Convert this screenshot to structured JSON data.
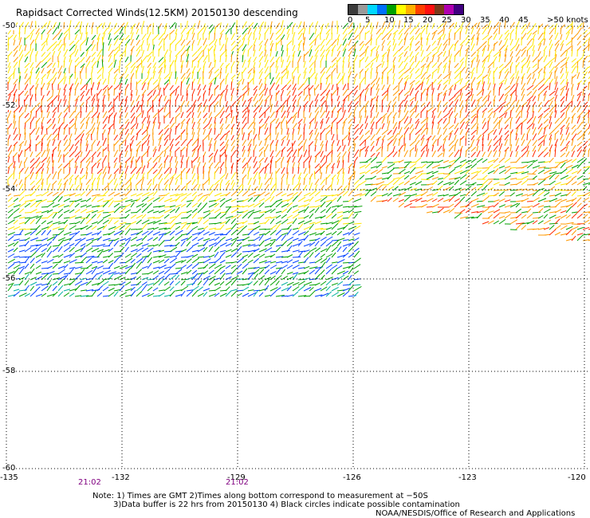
{
  "title": "Rapidsact Corrected Winds(12.5KM) 20150130 descending",
  "legend": {
    "labels": [
      "0",
      "5",
      "10",
      "15",
      "20",
      "25",
      "30",
      "35",
      "40",
      "45",
      ">50 knots"
    ],
    "colors": [
      "#3c3c3c",
      "#9a9a9a",
      "#00d8ff",
      "#0070ff",
      "#00a000",
      "#ffff00",
      "#ffb000",
      "#ff4000",
      "#ff1010",
      "#7a3a1a",
      "#b000b0",
      "#400080"
    ]
  },
  "map": {
    "lat_labels": [
      "-50",
      "-52",
      "-54",
      "-56",
      "-58",
      "-60"
    ],
    "lon_labels": [
      "-135",
      "-132",
      "-129",
      "-126",
      "-123",
      "-120"
    ],
    "time_labels": [
      "21:02",
      "21:02"
    ]
  },
  "notes": {
    "line1": "Note: 1) Times are GMT 2)Times along bottom correspond to measurement at −50S",
    "line2": "3)Data buffer is 22 hrs from 20150130 4) Black circles indicate possible contamination",
    "line3": "NOAA/NESDIS/Office of Research and Applications"
  }
}
